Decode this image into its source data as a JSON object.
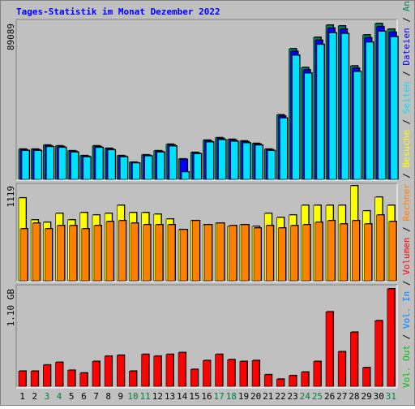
{
  "legend_separator": " / ",
  "chart_data": [
    {
      "type": "bar",
      "title": "Tages-Statistik im Monat Dezember 2022",
      "ylim": [
        0,
        89089
      ],
      "yticks": [
        89089
      ],
      "series": [
        {
          "name": "Anfragen",
          "color": "#00805c",
          "values": [
            17258,
            17258,
            19590,
            19124,
            16325,
            13527,
            19124,
            17725,
            13527,
            9795,
            13993,
            16325,
            20057,
            11661,
            15392,
            22389,
            23788,
            22855,
            21922,
            20523,
            17258,
            36848,
            74629,
            63901,
            81160,
            88156,
            87690,
            64834,
            82559,
            89089,
            85825
          ]
        },
        {
          "name": "Dateien",
          "color": "#0000ff",
          "values": [
            16900,
            16900,
            19100,
            18700,
            16000,
            13200,
            18700,
            17300,
            13200,
            9500,
            13700,
            16000,
            19600,
            11400,
            15000,
            21900,
            23300,
            22400,
            21500,
            20100,
            16900,
            36100,
            73100,
            62600,
            79500,
            86400,
            85900,
            63500,
            80900,
            87300,
            84100
          ]
        },
        {
          "name": "Seiten",
          "color": "#00e0ff",
          "values": [
            16400,
            16400,
            18600,
            18200,
            15500,
            12800,
            18200,
            16800,
            12800,
            9300,
            13300,
            15500,
            19000,
            4200,
            14600,
            21300,
            22600,
            21700,
            20800,
            19500,
            16400,
            35000,
            70900,
            60700,
            77100,
            83700,
            83300,
            61600,
            78400,
            84600,
            81500
          ]
        }
      ]
    },
    {
      "type": "bar",
      "ylim": [
        0,
        1119
      ],
      "yticks": [
        1119
      ],
      "series": [
        {
          "name": "Besuche",
          "color": "#ffff00",
          "values": [
            976,
            717,
            689,
            794,
            717,
            803,
            775,
            794,
            889,
            803,
            803,
            784,
            727,
            603,
            708,
            660,
            679,
            641,
            660,
            641,
            794,
            746,
            775,
            889,
            889,
            889,
            889,
            1119,
            823,
            985,
            889
          ]
        },
        {
          "name": "Rechner",
          "color": "#ff8000",
          "values": [
            612,
            679,
            612,
            650,
            650,
            612,
            650,
            698,
            708,
            679,
            660,
            660,
            660,
            603,
            708,
            660,
            679,
            650,
            660,
            622,
            650,
            622,
            650,
            660,
            689,
            708,
            669,
            708,
            669,
            775,
            698
          ]
        }
      ]
    },
    {
      "type": "bar",
      "ylim": [
        0,
        1.1
      ],
      "yticks": [
        {
          "value": 1.1,
          "label": "1.10 GB"
        }
      ],
      "categories": [
        "1",
        "2",
        "3",
        "4",
        "5",
        "6",
        "7",
        "8",
        "9",
        "10",
        "11",
        "12",
        "13",
        "14",
        "15",
        "16",
        "17",
        "18",
        "19",
        "20",
        "21",
        "22",
        "23",
        "24",
        "25",
        "26",
        "27",
        "28",
        "29",
        "30",
        "31"
      ],
      "category_colors": [
        "#000000",
        "#000000",
        "#008040",
        "#008040",
        "#000000",
        "#000000",
        "#000000",
        "#000000",
        "#000000",
        "#008040",
        "#008040",
        "#000000",
        "#000000",
        "#000000",
        "#000000",
        "#000000",
        "#008040",
        "#008040",
        "#000000",
        "#000000",
        "#000000",
        "#000000",
        "#000000",
        "#008040",
        "#008040",
        "#000000",
        "#000000",
        "#000000",
        "#000000",
        "#000000",
        "#008040"
      ],
      "series": [
        {
          "name": "Volumen",
          "color": "#ff0000",
          "values": [
            0.17,
            0.17,
            0.24,
            0.27,
            0.18,
            0.15,
            0.28,
            0.34,
            0.35,
            0.17,
            0.36,
            0.34,
            0.36,
            0.38,
            0.19,
            0.29,
            0.36,
            0.3,
            0.28,
            0.29,
            0.13,
            0.08,
            0.12,
            0.16,
            0.28,
            0.84,
            0.39,
            0.61,
            0.21,
            0.74,
            1.1
          ]
        },
        {
          "name": "Vol. In",
          "color": "#0080ff",
          "values": [
            null,
            null,
            null,
            null,
            null,
            null,
            null,
            null,
            null,
            null,
            null,
            null,
            null,
            null,
            null,
            null,
            null,
            null,
            null,
            null,
            null,
            null,
            null,
            null,
            null,
            null,
            null,
            null,
            null,
            null,
            null
          ]
        },
        {
          "name": "Vol. Out",
          "color": "#00c000",
          "values": [
            null,
            null,
            null,
            null,
            null,
            null,
            null,
            null,
            null,
            null,
            null,
            null,
            null,
            null,
            null,
            null,
            null,
            null,
            null,
            null,
            null,
            null,
            null,
            null,
            null,
            null,
            null,
            null,
            null,
            null,
            null
          ]
        }
      ]
    }
  ]
}
